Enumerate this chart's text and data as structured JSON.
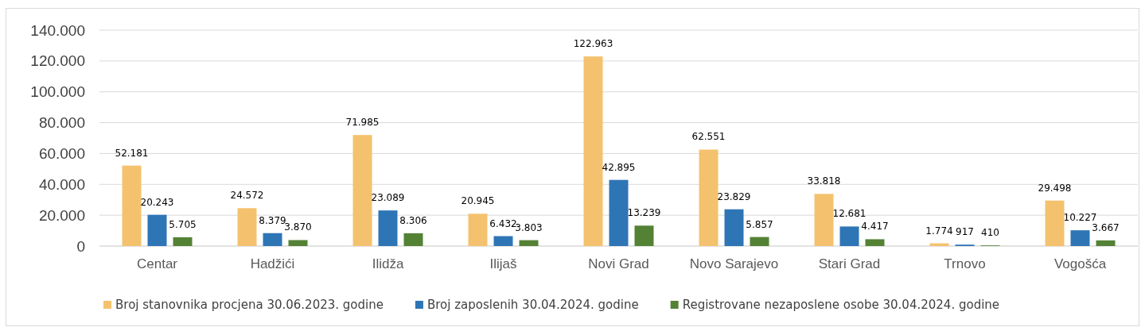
{
  "chart_data": {
    "type": "bar",
    "categories": [
      "Centar",
      "Hadžići",
      "Ilidža",
      "Ilijaš",
      "Novi Grad",
      "Novo Sarajevo",
      "Stari Grad",
      "Trnovo",
      "Vogošća"
    ],
    "series": [
      {
        "name": "Broj stanovnika procjena 30.06.2023. godine",
        "color": "#f4c26e",
        "values": [
          52181,
          24572,
          71985,
          20945,
          122963,
          62551,
          33818,
          1774,
          29498
        ],
        "value_labels": [
          "52.181",
          "24.572",
          "71.985",
          "20.945",
          "122.963",
          "62.551",
          "33.818",
          "1.774",
          "29.498"
        ]
      },
      {
        "name": "Broj zaposlenih 30.04.2024. godine",
        "color": "#2e75b6",
        "values": [
          20243,
          8379,
          23089,
          6432,
          42895,
          23829,
          12681,
          917,
          10227
        ],
        "value_labels": [
          "20.243",
          "8.379",
          "23.089",
          "6.432",
          "42.895",
          "23.829",
          "12.681",
          "917",
          "10.227"
        ]
      },
      {
        "name": "Registrovane nezaposlene osobe 30.04.2024. godine",
        "color": "#548235",
        "values": [
          5705,
          3870,
          8306,
          3803,
          13239,
          5857,
          4417,
          410,
          3667
        ],
        "value_labels": [
          "5.705",
          "3.870",
          "8.306",
          "3.803",
          "13.239",
          "5.857",
          "4.417",
          "410",
          "3.667"
        ]
      }
    ],
    "ylim": [
      0,
      140000
    ],
    "yticks": [
      {
        "value": 0,
        "label": "0"
      },
      {
        "value": 20000,
        "label": "20.000"
      },
      {
        "value": 40000,
        "label": "40.000"
      },
      {
        "value": 60000,
        "label": "60.000"
      },
      {
        "value": 80000,
        "label": "80.000"
      },
      {
        "value": 100000,
        "label": "100.000"
      },
      {
        "value": 120000,
        "label": "120.000"
      },
      {
        "value": 140000,
        "label": "140.000"
      }
    ],
    "grid": "y",
    "legend": "bottom"
  }
}
